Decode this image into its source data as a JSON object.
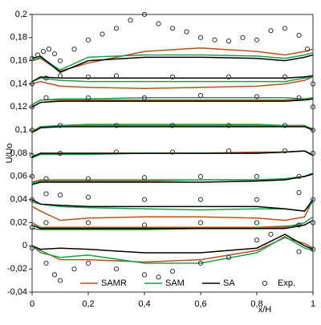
{
  "chart_data": {
    "type": "line",
    "xlabel": "x/H",
    "ylabel": "U/Uo",
    "x": [
      0,
      0.03,
      0.1,
      0.2,
      0.4,
      0.6,
      0.8,
      0.9,
      0.97,
      1
    ],
    "xlim": [
      0,
      1
    ],
    "xticks": [
      0,
      {
        "value": 0.2,
        "label": "0,2"
      },
      {
        "value": 0.4,
        "label": "0,4"
      },
      {
        "value": 0.6,
        "label": "0,6"
      },
      {
        "value": 0.8,
        "label": "0,8"
      },
      1
    ],
    "ylim": [
      -0.04,
      0.2
    ],
    "yticks": [
      {
        "value": -0.04,
        "label": "-0,04"
      },
      {
        "value": -0.02,
        "label": "-0,02"
      },
      0,
      {
        "value": 0.02,
        "label": "0,02"
      },
      {
        "value": 0.04,
        "label": "0,04"
      },
      {
        "value": 0.06,
        "label": "0,06"
      },
      {
        "value": 0.08,
        "label": "0,08"
      },
      {
        "value": 0.1,
        "label": "0,1"
      },
      {
        "value": 0.12,
        "label": "0,12"
      },
      {
        "value": 0.14,
        "label": "0,14"
      },
      {
        "value": 0.16,
        "label": "0,16"
      },
      {
        "value": 0.18,
        "label": "0,18"
      },
      {
        "value": 0.2,
        "label": "0,2"
      }
    ],
    "legend": "bottom",
    "series": [
      {
        "name": "SAMR",
        "color": "#b5531c",
        "values": [
          [
            0.16,
            0.162,
            0.151,
            0.158,
            0.168,
            0.171,
            0.168,
            0.165,
            0.168,
            0.17
          ],
          [
            0.14,
            0.142,
            0.138,
            0.137,
            0.136,
            0.137,
            0.138,
            0.14,
            0.143,
            0.146
          ],
          [
            0.122,
            0.126,
            0.126,
            0.126,
            0.126,
            0.126,
            0.126,
            0.126,
            0.127,
            0.128
          ],
          [
            0.099,
            0.103,
            0.104,
            0.104,
            0.104,
            0.104,
            0.104,
            0.104,
            0.104,
            0.101
          ],
          [
            0.076,
            0.08,
            0.08,
            0.08,
            0.08,
            0.08,
            0.081,
            0.081,
            0.082,
            0.078
          ],
          [
            0.055,
            0.057,
            0.057,
            0.057,
            0.057,
            0.057,
            0.057,
            0.058,
            0.06,
            0.062
          ],
          [
            0.034,
            0.03,
            0.022,
            0.024,
            0.025,
            0.025,
            0.024,
            0.022,
            0.025,
            0.04
          ],
          [
            0.02,
            0.016,
            0.016,
            0.016,
            0.016,
            0.016,
            0.016,
            0.017,
            0.018,
            0.022
          ],
          [
            0,
            -0.004,
            -0.012,
            -0.012,
            -0.014,
            -0.012,
            -0.004,
            0.007,
            0.002,
            -0.002
          ]
        ]
      },
      {
        "name": "SAM",
        "color": "#18a050",
        "values": [
          [
            0.16,
            0.163,
            0.152,
            0.163,
            0.165,
            0.165,
            0.164,
            0.162,
            0.165,
            0.167
          ],
          [
            0.142,
            0.145,
            0.143,
            0.142,
            0.142,
            0.142,
            0.142,
            0.142,
            0.145,
            0.146
          ],
          [
            0.122,
            0.126,
            0.127,
            0.127,
            0.128,
            0.128,
            0.128,
            0.128,
            0.127,
            0.128
          ],
          [
            0.098,
            0.103,
            0.104,
            0.105,
            0.105,
            0.105,
            0.105,
            0.104,
            0.104,
            0.1
          ],
          [
            0.076,
            0.079,
            0.079,
            0.079,
            0.08,
            0.08,
            0.08,
            0.081,
            0.082,
            0.079
          ],
          [
            0.054,
            0.056,
            0.056,
            0.056,
            0.056,
            0.057,
            0.057,
            0.058,
            0.06,
            0.063
          ],
          [
            0.038,
            0.036,
            0.034,
            0.033,
            0.032,
            0.031,
            0.032,
            0.032,
            0.03,
            0.038
          ],
          [
            0.015,
            0.014,
            0.014,
            0.014,
            0.014,
            0.015,
            0.015,
            0.016,
            0.02,
            0.025
          ],
          [
            0,
            -0.006,
            -0.01,
            -0.008,
            -0.015,
            -0.015,
            -0.006,
            0.008,
            -0.002,
            -0.004
          ]
        ]
      },
      {
        "name": "SA",
        "color": "#000000",
        "values": [
          [
            0.162,
            0.164,
            0.15,
            0.16,
            0.163,
            0.163,
            0.162,
            0.16,
            0.163,
            0.165
          ],
          [
            0.142,
            0.146,
            0.145,
            0.145,
            0.145,
            0.145,
            0.145,
            0.145,
            0.146,
            0.147
          ],
          [
            0.12,
            0.124,
            0.125,
            0.125,
            0.125,
            0.125,
            0.125,
            0.125,
            0.126,
            0.127
          ],
          [
            0.098,
            0.102,
            0.103,
            0.103,
            0.103,
            0.103,
            0.103,
            0.103,
            0.103,
            0.1
          ],
          [
            0.077,
            0.08,
            0.08,
            0.08,
            0.08,
            0.08,
            0.08,
            0.081,
            0.082,
            0.078
          ],
          [
            0.053,
            0.055,
            0.055,
            0.055,
            0.055,
            0.055,
            0.056,
            0.057,
            0.06,
            0.062
          ],
          [
            0.04,
            0.036,
            0.035,
            0.034,
            0.034,
            0.034,
            0.034,
            0.032,
            0.03,
            0.04
          ],
          [
            0.018,
            0.015,
            0.015,
            0.015,
            0.015,
            0.015,
            0.015,
            0.015,
            0.018,
            0.022
          ],
          [
            0,
            -0.003,
            -0.002,
            -0.003,
            -0.006,
            -0.006,
            -0.002,
            0.01,
            0,
            -0.003
          ]
        ]
      },
      {
        "name": "Exp.",
        "type": "scatter",
        "color": "#333333",
        "x": [
          0,
          0.02,
          0.04,
          0.06,
          0.08,
          0.1,
          0.15,
          0.2,
          0.25,
          0.3,
          0.35,
          0.4,
          0.45,
          0.5,
          0.55,
          0.6,
          0.65,
          0.7,
          0.75,
          0.8,
          0.85,
          0.9,
          0.95,
          0.98,
          0,
          0.05,
          0.1,
          0.2,
          0.3,
          0.5,
          0.7,
          0.9,
          1,
          0,
          0.05,
          0.2,
          0.4,
          0.6,
          0.8,
          0.95,
          1,
          0,
          0.1,
          0.3,
          0.5,
          0.7,
          0.9,
          1,
          0,
          0.1,
          0.3,
          0.5,
          0.7,
          0.9,
          1,
          0,
          0.05,
          0.2,
          0.4,
          0.6,
          0.8,
          0.95,
          0,
          0.05,
          0.1,
          0.2,
          0.4,
          0.6,
          0.8,
          0.95,
          1,
          0,
          0.05,
          0.2,
          0.4,
          0.6,
          0.8,
          0.95,
          1,
          0,
          0.05,
          0.08,
          0.1,
          0.15,
          0.2,
          0.3,
          0.4,
          0.45,
          0.5,
          0.6,
          0.7,
          0.8,
          0.85,
          0.95,
          1
        ],
        "values": [
          0.162,
          0.165,
          0.168,
          0.17,
          0.166,
          0.16,
          0.17,
          0.178,
          0.183,
          0.188,
          0.195,
          0.2,
          0.192,
          0.188,
          0.185,
          0.18,
          0.178,
          0.177,
          0.18,
          0.178,
          0.186,
          0.188,
          0.182,
          0.17,
          0.14,
          0.145,
          0.147,
          0.146,
          0.147,
          0.146,
          0.146,
          0.146,
          0.14,
          0.12,
          0.128,
          0.128,
          0.128,
          0.13,
          0.129,
          0.128,
          0.12,
          0.1,
          0.104,
          0.104,
          0.104,
          0.104,
          0.104,
          0.1,
          0.078,
          0.08,
          0.081,
          0.081,
          0.082,
          0.082,
          0.08,
          0.06,
          0.058,
          0.058,
          0.059,
          0.06,
          0.06,
          0.06,
          0.04,
          0.045,
          0.044,
          0.042,
          0.04,
          0.04,
          0.04,
          0.046,
          0.04,
          0.016,
          0.02,
          0.02,
          0.018,
          0.02,
          0.02,
          0.018,
          0.02,
          -0.002,
          -0.015,
          -0.025,
          -0.03,
          -0.02,
          -0.015,
          -0.02,
          -0.025,
          -0.027,
          -0.022,
          -0.015,
          -0.01,
          0.005,
          0.01,
          -0.005,
          -0.003
        ]
      }
    ]
  }
}
